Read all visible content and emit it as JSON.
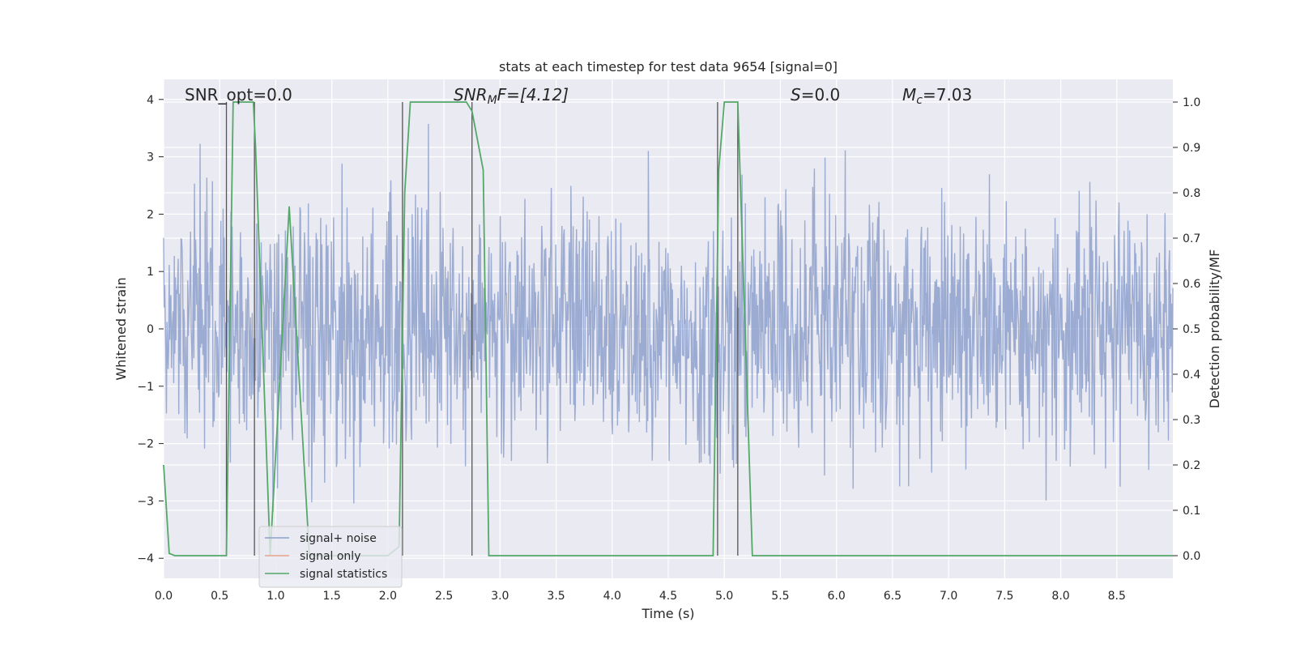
{
  "chart_data": {
    "type": "line",
    "title": "stats at each timestep for test data 9654 [signal=0]",
    "xlabel": "Time (s)",
    "ylabel_left": "Whitened strain",
    "ylabel_right": "Detection probability/MF",
    "xlim": [
      0,
      9.0
    ],
    "ylim_left": [
      -4.35,
      4.35
    ],
    "ylim_right": [
      -0.05,
      1.05
    ],
    "x_ticks": [
      "0.0",
      "0.5",
      "1.0",
      "1.5",
      "2.0",
      "2.5",
      "3.0",
      "3.5",
      "4.0",
      "4.5",
      "5.0",
      "5.5",
      "6.0",
      "6.5",
      "7.0",
      "7.5",
      "8.0",
      "8.5"
    ],
    "y_ticks_left": [
      "4",
      "3",
      "2",
      "1",
      "0",
      "−1",
      "−2",
      "−3",
      "−4"
    ],
    "y_ticks_right": [
      "1.0",
      "0.9",
      "0.8",
      "0.7",
      "0.6",
      "0.5",
      "0.4",
      "0.3",
      "0.2",
      "0.1",
      "0.0"
    ],
    "grid": true,
    "legend_placement": "lower-left",
    "annotations": {
      "snr_opt": "SNR_opt=0.0",
      "snr_mf_base": "SNR",
      "snr_mf_sub": "M",
      "snr_mf_rest": "F=[4.12]",
      "s_base": "S",
      "s_rest": "=0.0",
      "mc_base": "M",
      "mc_sub": "c",
      "mc_rest": "=7.03"
    },
    "series": [
      {
        "name": "signal+ noise",
        "color": "#8da0cb",
        "description": "whitened noisy strain, amplitude roughly within [-4, 4]"
      },
      {
        "name": "signal only",
        "color": "#e8a48d",
        "values": []
      },
      {
        "name": "signal statistics",
        "color": "#55a868",
        "x": [
          0.0,
          0.05,
          0.1,
          0.55,
          0.56,
          0.62,
          0.8,
          0.82,
          0.95,
          1.12,
          1.3,
          1.4,
          1.5,
          2.0,
          2.1,
          2.15,
          2.2,
          2.7,
          2.75,
          2.85,
          2.9,
          3.0,
          4.9,
          4.95,
          5.0,
          5.12,
          5.25,
          5.3,
          9.0
        ],
        "values": [
          0.2,
          0.005,
          0.0,
          0.0,
          0.0,
          1.0,
          1.0,
          0.9,
          0.0,
          0.77,
          0.0,
          0.0,
          0.0,
          0.0,
          0.02,
          0.8,
          1.0,
          1.0,
          0.98,
          0.85,
          0.0,
          0.0,
          0.0,
          0.85,
          1.0,
          1.0,
          0.0,
          0.0,
          0.0
        ]
      }
    ],
    "vertical_lines_x": [
      0.56,
      0.81,
      2.13,
      2.75,
      4.94,
      5.12
    ]
  }
}
